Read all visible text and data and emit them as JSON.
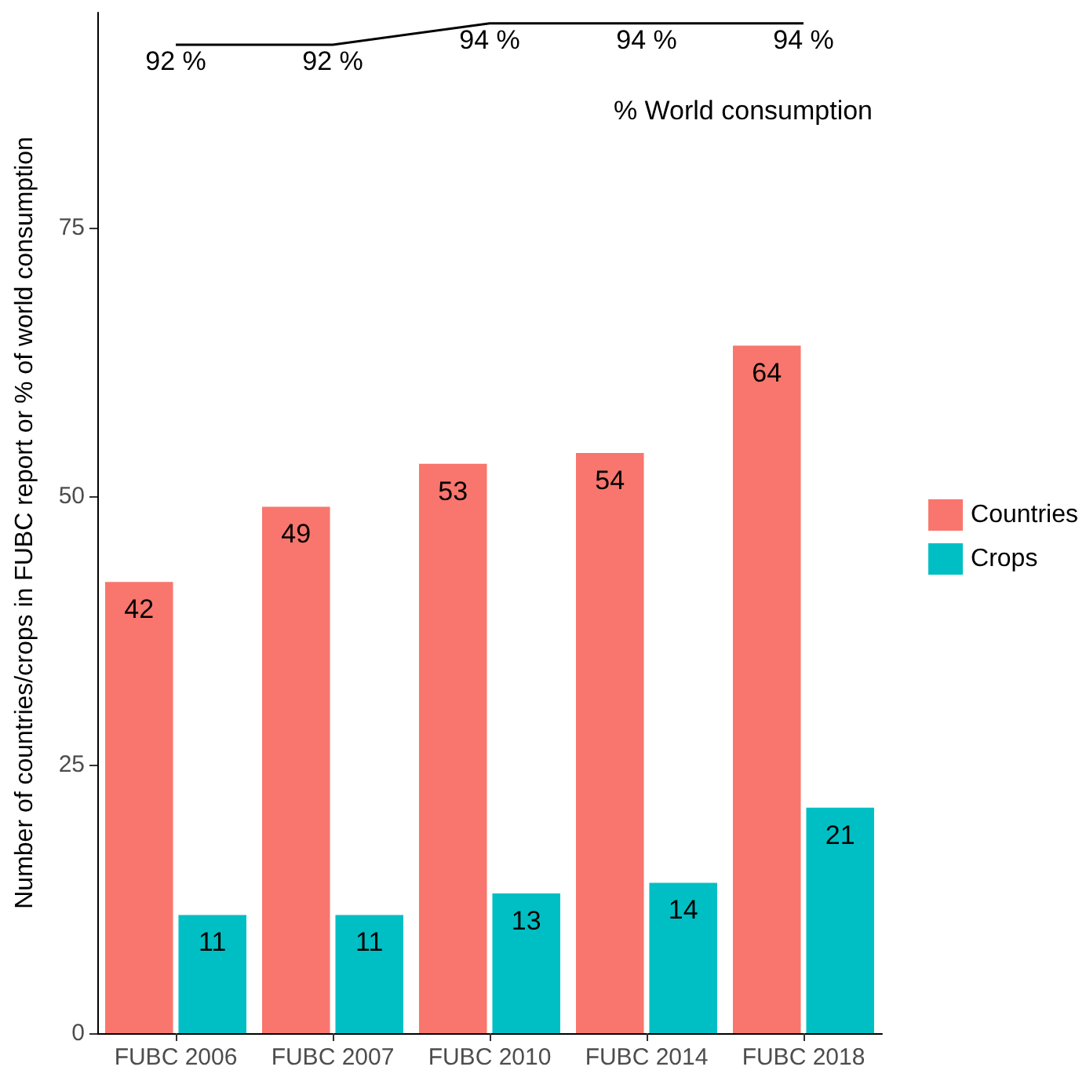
{
  "chart_data": {
    "type": "bar",
    "ylabel": "Number of countries/crops in FUBC report or % of world consumption",
    "categories": [
      "FUBC 2006",
      "FUBC 2007",
      "FUBC 2010",
      "FUBC 2014",
      "FUBC 2018"
    ],
    "series": [
      {
        "name": "Countries",
        "color": "#f8766d",
        "values": [
          42,
          49,
          53,
          54,
          64
        ]
      },
      {
        "name": "Crops",
        "color": "#00bfc4",
        "values": [
          11,
          11,
          13,
          14,
          21
        ]
      },
      {
        "name": "% World consumption",
        "type": "line",
        "color": "#000000",
        "values": [
          92,
          92,
          94,
          94,
          94
        ],
        "value_labels": [
          "92 %",
          "92 %",
          "94 %",
          "94 %",
          "94 %"
        ],
        "marker": "none"
      }
    ],
    "data_labels": true,
    "ylim": [
      0,
      95
    ],
    "yticks": [
      0,
      25,
      50,
      75
    ],
    "grid": false,
    "legend": "right"
  }
}
